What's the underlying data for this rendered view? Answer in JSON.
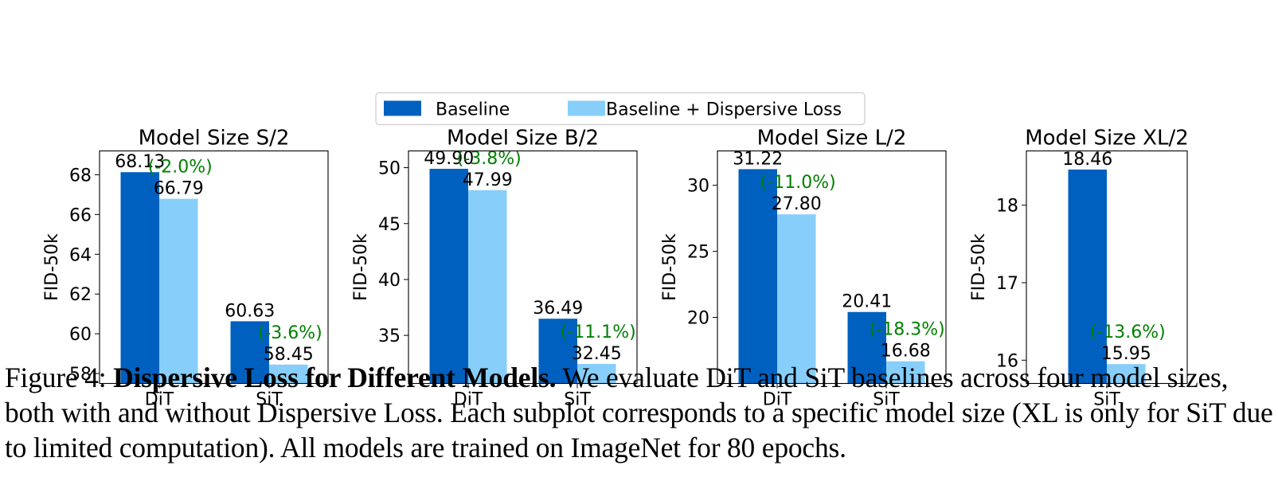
{
  "legend": {
    "items": [
      {
        "label": "Baseline",
        "color": "#0060c0"
      },
      {
        "label": "Baseline + Dispersive Loss",
        "color": "#87cefa"
      }
    ],
    "placement": "top-center"
  },
  "annotation_color": "#008000",
  "chart_data": [
    {
      "type": "bar",
      "title": "Model Size S/2",
      "ylabel": "FID-50k",
      "categories": [
        "DiT",
        "SiT"
      ],
      "ylim": [
        57.5,
        69.2
      ],
      "yticks": [
        58,
        60,
        62,
        64,
        66,
        68
      ],
      "series": [
        {
          "name": "Baseline",
          "values": [
            68.13,
            60.63
          ],
          "labels": [
            "68.13",
            "60.63"
          ]
        },
        {
          "name": "Baseline + Dispersive Loss",
          "values": [
            66.79,
            58.45
          ],
          "labels": [
            "66.79",
            "58.45"
          ]
        }
      ],
      "annotations": [
        "(-2.0%)",
        "(-3.6%)"
      ]
    },
    {
      "type": "bar",
      "title": "Model Size B/2",
      "ylabel": "FID-50k",
      "categories": [
        "DiT",
        "SiT"
      ],
      "ylim": [
        30.7,
        51.5
      ],
      "yticks": [
        35,
        40,
        45,
        50
      ],
      "series": [
        {
          "name": "Baseline",
          "values": [
            49.9,
            36.49
          ],
          "labels": [
            "49.90",
            "36.49"
          ]
        },
        {
          "name": "Baseline + Dispersive Loss",
          "values": [
            47.99,
            32.45
          ],
          "labels": [
            "47.99",
            "32.45"
          ]
        }
      ],
      "annotations": [
        "(-3.8%)",
        "(-11.1%)"
      ]
    },
    {
      "type": "bar",
      "title": "Model Size L/2",
      "ylabel": "FID-50k",
      "categories": [
        "DiT",
        "SiT"
      ],
      "ylim": [
        15.0,
        32.6
      ],
      "yticks": [
        20,
        25,
        30
      ],
      "series": [
        {
          "name": "Baseline",
          "values": [
            31.22,
            20.41
          ],
          "labels": [
            "31.22",
            "20.41"
          ]
        },
        {
          "name": "Baseline + Dispersive Loss",
          "values": [
            27.8,
            16.68
          ],
          "labels": [
            "27.80",
            "16.68"
          ]
        }
      ],
      "annotations": [
        "(-11.0%)",
        "(-18.3%)"
      ]
    },
    {
      "type": "bar",
      "title": "Model Size XL/2",
      "ylabel": "FID-50k",
      "categories": [
        "SiT"
      ],
      "ylim": [
        15.7,
        18.7
      ],
      "yticks": [
        16,
        17,
        18
      ],
      "series": [
        {
          "name": "Baseline",
          "values": [
            18.46
          ],
          "labels": [
            "18.46"
          ]
        },
        {
          "name": "Baseline + Dispersive Loss",
          "values": [
            15.95
          ],
          "labels": [
            "15.95"
          ]
        }
      ],
      "annotations": [
        "(-13.6%)"
      ]
    }
  ],
  "caption": {
    "prefix": "Figure 4: ",
    "bold": "Dispersive Loss for Different Models.",
    "text": " We evaluate DiT and SiT baselines across four model sizes, both with and without Dispersive Loss. Each subplot corresponds to a specific model size (XL is only for SiT due to limited computation). All models are trained on ImageNet for 80 epochs."
  }
}
